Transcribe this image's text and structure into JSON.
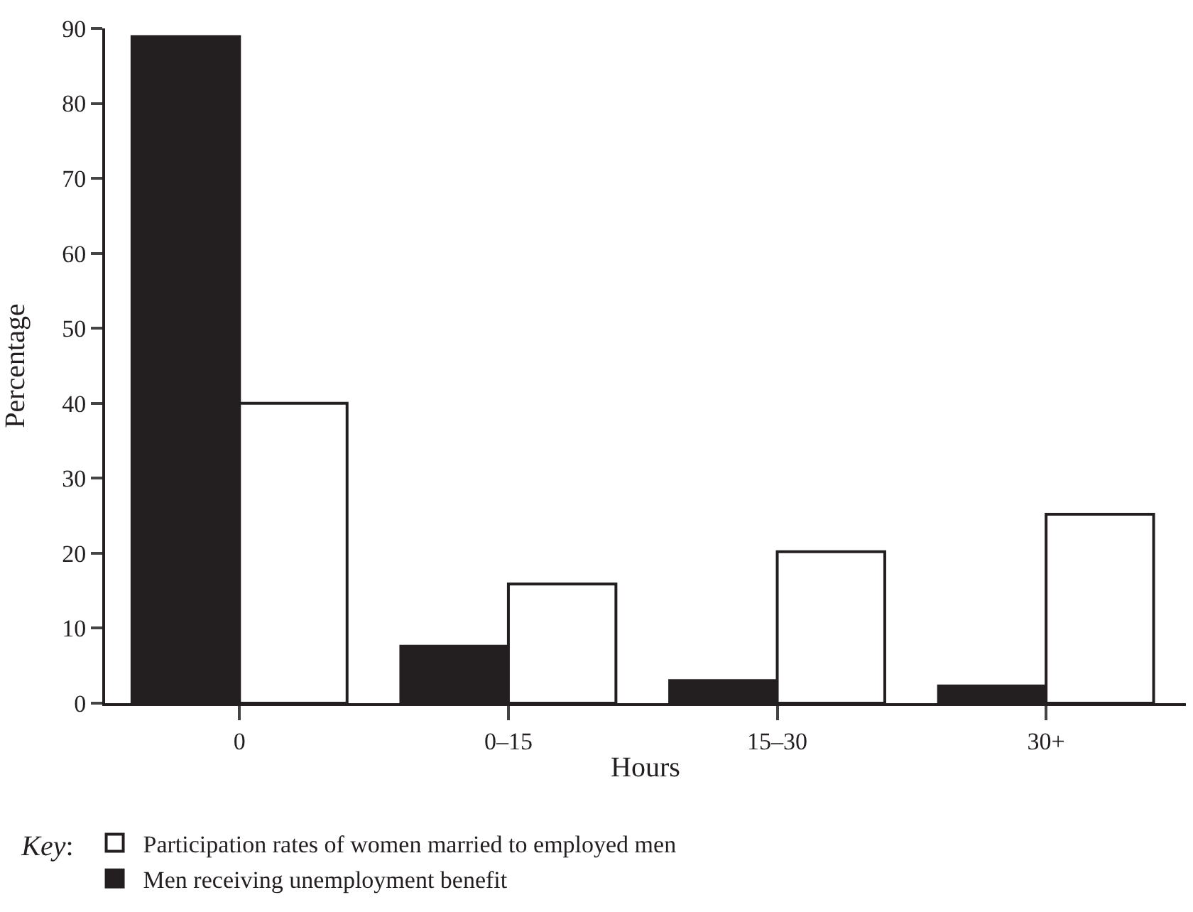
{
  "chart_data": {
    "type": "bar",
    "xlabel": "Hours",
    "ylabel": "Percentage",
    "legend_title": "Key:",
    "categories": [
      "0",
      "0–15",
      "15–30",
      "30+"
    ],
    "series": [
      {
        "name": "Men receiving unemployment benefit",
        "color": "#231f20",
        "values": [
          88.9,
          7.6,
          3.0,
          2.3
        ]
      },
      {
        "name": "Participation rates of women married to employed men",
        "color": "#ffffff",
        "values": [
          40,
          15.9,
          20.2,
          25.2
        ]
      }
    ],
    "ylim": [
      0,
      90
    ],
    "yticks": [
      0,
      10,
      20,
      30,
      40,
      50,
      60,
      70,
      80,
      90
    ],
    "legend": "bottom"
  }
}
